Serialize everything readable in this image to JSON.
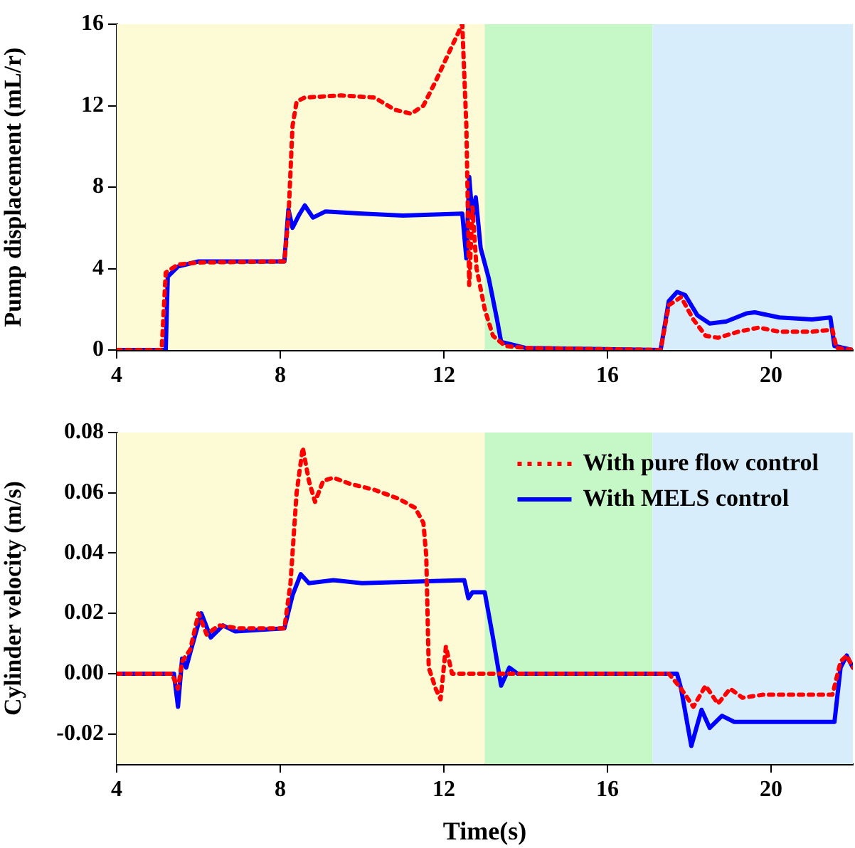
{
  "chart_data": [
    {
      "type": "line",
      "ylabel": "Pump displacement (mL/r)",
      "xlim": [
        4,
        22
      ],
      "xticks": [
        4,
        8,
        12,
        16,
        20
      ],
      "ylim": [
        0,
        16
      ],
      "yticks": [
        0,
        4,
        8,
        12,
        16
      ],
      "bands": [
        {
          "axis": "x",
          "from": 4,
          "to": 13,
          "color": "#fdfbd6"
        },
        {
          "axis": "x",
          "from": 13,
          "to": 17.1,
          "color": "#c6f7c6"
        },
        {
          "axis": "x",
          "from": 17.1,
          "to": 22,
          "color": "#d8edfb"
        }
      ],
      "series": [
        {
          "color": "#ff0000",
          "line_style": "dotted",
          "x": [
            4,
            5.1,
            5.2,
            5.5,
            6,
            8.1,
            8.2,
            8.3,
            8.4,
            8.6,
            9.5,
            10.3,
            10.8,
            11.2,
            11.5,
            11.8,
            12.1,
            12.45,
            12.55,
            12.62,
            12.7,
            12.8,
            13,
            13.2,
            13.5,
            14,
            17.3,
            17.5,
            17.8,
            18.1,
            18.4,
            18.7,
            19.2,
            19.7,
            20.2,
            21,
            21.5,
            21.6,
            22
          ],
          "values": [
            0,
            0,
            3.8,
            4.2,
            4.3,
            4.35,
            6.5,
            11,
            12.2,
            12.4,
            12.5,
            12.4,
            11.8,
            11.6,
            12,
            13.2,
            14.5,
            16,
            11,
            3.2,
            7,
            4,
            2,
            0.7,
            0.2,
            0.1,
            0,
            2.2,
            2.6,
            1.5,
            0.7,
            0.6,
            0.9,
            1.1,
            0.9,
            0.9,
            1.0,
            0.1,
            0
          ]
        },
        {
          "color": "#0000ff",
          "line_style": "solid",
          "x": [
            4,
            5.2,
            5.25,
            5.5,
            6,
            8.1,
            8.2,
            8.3,
            8.45,
            8.6,
            8.8,
            9.1,
            10,
            11,
            12.45,
            12.55,
            12.62,
            12.7,
            12.78,
            12.9,
            13.1,
            13.3,
            13.4,
            13.6,
            14,
            17.3,
            17.5,
            17.7,
            17.9,
            18.2,
            18.5,
            18.9,
            19.4,
            19.6,
            20.2,
            21,
            21.45,
            21.55,
            22
          ],
          "values": [
            0,
            0,
            3.6,
            4.1,
            4.35,
            4.35,
            6.9,
            6.0,
            6.6,
            7.1,
            6.5,
            6.8,
            6.7,
            6.6,
            6.7,
            4.5,
            8.5,
            6.5,
            7.5,
            5,
            3.5,
            1.5,
            0.4,
            0.3,
            0.1,
            0,
            2.4,
            2.85,
            2.7,
            1.7,
            1.3,
            1.4,
            1.8,
            1.85,
            1.6,
            1.5,
            1.6,
            0.2,
            0
          ]
        }
      ]
    },
    {
      "type": "line",
      "xlabel": "Time(s)",
      "ylabel": "Cylinder velocity (m/s)",
      "legend": "top right",
      "xlim": [
        4,
        22
      ],
      "xticks": [
        4,
        8,
        12,
        16,
        20
      ],
      "ylim": [
        -0.03,
        0.08
      ],
      "yticks": [
        -0.02,
        {
          "value": 0,
          "label": "0.00"
        },
        0.02,
        0.04,
        0.06,
        0.08
      ],
      "bands": [
        {
          "axis": "x",
          "from": 4,
          "to": 13,
          "color": "#fdfbd6"
        },
        {
          "axis": "x",
          "from": 13,
          "to": 17.1,
          "color": "#c6f7c6"
        },
        {
          "axis": "x",
          "from": 17.1,
          "to": 22,
          "color": "#d8edfb"
        }
      ],
      "series": [
        {
          "name": "With pure flow control",
          "color": "#ff0000",
          "line_style": "dotted",
          "x": [
            4,
            5.35,
            5.5,
            5.6,
            5.8,
            6.0,
            6.2,
            6.5,
            7,
            8.1,
            8.25,
            8.4,
            8.55,
            8.7,
            8.85,
            9.05,
            9.3,
            9.7,
            10.3,
            10.9,
            11.3,
            11.5,
            11.57,
            11.63,
            11.8,
            11.92,
            12.05,
            12.2,
            12.6,
            17.5,
            17.8,
            18.1,
            18.4,
            18.7,
            19.0,
            19.3,
            19.8,
            20.5,
            21.5,
            21.7,
            21.85,
            22
          ],
          "values": [
            0,
            0,
            -0.005,
            0.004,
            0.008,
            0.02,
            0.013,
            0.016,
            0.015,
            0.015,
            0.03,
            0.06,
            0.075,
            0.064,
            0.057,
            0.064,
            0.065,
            0.063,
            0.061,
            0.058,
            0.055,
            0.05,
            0.039,
            0.002,
            -0.005,
            -0.0085,
            0.009,
            0,
            0,
            0,
            -0.005,
            -0.011,
            -0.004,
            -0.01,
            -0.005,
            -0.008,
            -0.007,
            -0.007,
            -0.007,
            0.004,
            0.006,
            0.002
          ]
        },
        {
          "name": "With MELS control",
          "color": "#0000ff",
          "line_style": "solid",
          "x": [
            4,
            5.4,
            5.5,
            5.6,
            5.7,
            5.8,
            6.07,
            6.3,
            6.6,
            6.9,
            8.1,
            8.3,
            8.5,
            8.7,
            9.3,
            10,
            12.5,
            12.6,
            12.7,
            13,
            13.2,
            13.4,
            13.6,
            13.8,
            17.7,
            17.8,
            18.05,
            18.3,
            18.5,
            18.8,
            19.1,
            21.55,
            21.7,
            21.85,
            22
          ],
          "values": [
            0,
            0,
            -0.011,
            0.005,
            0.002,
            0.007,
            0.02,
            0.012,
            0.016,
            0.014,
            0.015,
            0.026,
            0.033,
            0.03,
            0.031,
            0.03,
            0.031,
            0.025,
            0.027,
            0.027,
            0.012,
            -0.004,
            0.002,
            0,
            0,
            -0.005,
            -0.024,
            -0.012,
            -0.018,
            -0.014,
            -0.016,
            -0.016,
            0.002,
            0.006,
            0.002
          ]
        }
      ]
    }
  ]
}
